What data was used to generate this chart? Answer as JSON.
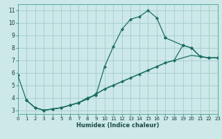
{
  "xlabel": "Humidex (Indice chaleur)",
  "bg_color": "#cce8e8",
  "grid_color": "#aacfcf",
  "line_color": "#1a6e60",
  "xlim": [
    0,
    23
  ],
  "ylim": [
    2.7,
    11.5
  ],
  "xticks": [
    0,
    1,
    2,
    3,
    4,
    5,
    6,
    7,
    8,
    9,
    10,
    11,
    12,
    13,
    14,
    15,
    16,
    17,
    18,
    19,
    20,
    21,
    22,
    23
  ],
  "yticks": [
    3,
    4,
    5,
    6,
    7,
    8,
    9,
    10,
    11
  ],
  "curve_main_up": {
    "x": [
      0,
      1,
      2,
      3,
      4,
      5,
      6,
      7,
      8,
      9,
      10,
      11,
      12,
      13,
      14,
      15,
      16,
      17
    ],
    "y": [
      5.8,
      3.8,
      3.2,
      3.0,
      3.1,
      3.2,
      3.4,
      3.6,
      4.0,
      4.2,
      6.5,
      8.1,
      9.5,
      10.3,
      10.5,
      11.0,
      10.4,
      8.8
    ]
  },
  "curve_main_down": {
    "x": [
      17,
      19,
      20,
      21,
      22,
      23
    ],
    "y": [
      8.8,
      8.2,
      8.0,
      7.3,
      7.2,
      7.2
    ]
  },
  "curve_diag_low": {
    "x": [
      1,
      2,
      3,
      4,
      5,
      6,
      7,
      8,
      9,
      10,
      11,
      12,
      13,
      14,
      15,
      16,
      17,
      18,
      19,
      20,
      21,
      22,
      23
    ],
    "y": [
      3.8,
      3.2,
      3.0,
      3.1,
      3.2,
      3.4,
      3.6,
      3.9,
      4.3,
      4.7,
      5.0,
      5.3,
      5.6,
      5.9,
      6.2,
      6.5,
      6.8,
      7.0,
      7.2,
      7.4,
      7.3,
      7.2,
      7.2
    ]
  },
  "curve_diag_mid": {
    "x": [
      1,
      2,
      3,
      4,
      5,
      6,
      7,
      8,
      9,
      10,
      11,
      12,
      13,
      14,
      15,
      16,
      17,
      18,
      19,
      20,
      21,
      22,
      23
    ],
    "y": [
      3.8,
      3.2,
      3.0,
      3.1,
      3.2,
      3.4,
      3.6,
      3.9,
      4.3,
      4.7,
      5.0,
      5.3,
      5.6,
      5.9,
      6.2,
      6.5,
      6.8,
      7.0,
      8.2,
      8.0,
      7.3,
      7.2,
      7.2
    ]
  }
}
